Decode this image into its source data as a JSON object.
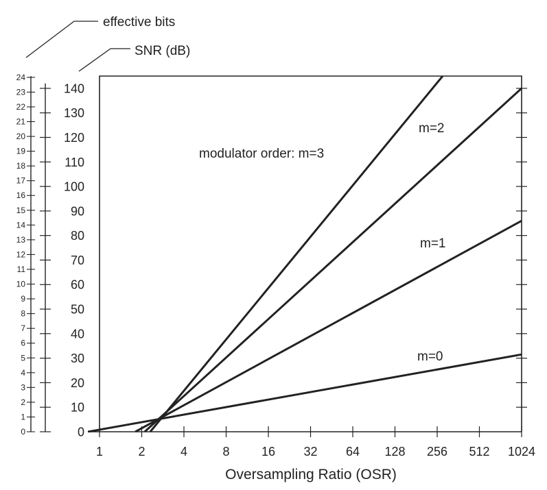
{
  "chart_data": {
    "type": "line",
    "x_scale": "log2",
    "x_ticks": [
      "1",
      "2",
      "4",
      "8",
      "16",
      "32",
      "64",
      "128",
      "256",
      "512",
      "1024"
    ],
    "xlim": [
      1,
      1024
    ],
    "xlabel": "Oversampling Ratio (OSR)",
    "ylabel_snr": "SNR (dB)",
    "ylabel_bits": "effective bits",
    "ylim": [
      0,
      145
    ],
    "snr_ticks": [
      "0",
      "10",
      "20",
      "30",
      "40",
      "50",
      "60",
      "70",
      "80",
      "90",
      "100",
      "110",
      "120",
      "130",
      "140"
    ],
    "bits_ticks": [
      "0",
      "1",
      "2",
      "3",
      "4",
      "5",
      "6",
      "7",
      "8",
      "9",
      "10",
      "11",
      "12",
      "13",
      "14",
      "15",
      "16",
      "17",
      "18",
      "19",
      "20",
      "21",
      "22",
      "23",
      "24"
    ],
    "grid": false,
    "series": [
      {
        "name": "m=0",
        "x": [
          1,
          1024
        ],
        "y": [
          0,
          31.5
        ]
      },
      {
        "name": "m=1",
        "x": [
          1.8,
          1024
        ],
        "y": [
          0,
          86.0
        ]
      },
      {
        "name": "m=2",
        "x": [
          2.1,
          1024
        ],
        "y": [
          0,
          140.0
        ]
      },
      {
        "name": "m=3",
        "x": [
          2.3,
          280
        ],
        "y": [
          0,
          145.0
        ]
      }
    ],
    "annotations": [
      {
        "text": "m=0",
        "series": "m=0"
      },
      {
        "text": "m=1",
        "series": "m=1"
      },
      {
        "text": "m=2",
        "series": "m=2"
      },
      {
        "text": "modulator order: m=3",
        "series": "m=3"
      }
    ],
    "line_color": "#222222"
  }
}
